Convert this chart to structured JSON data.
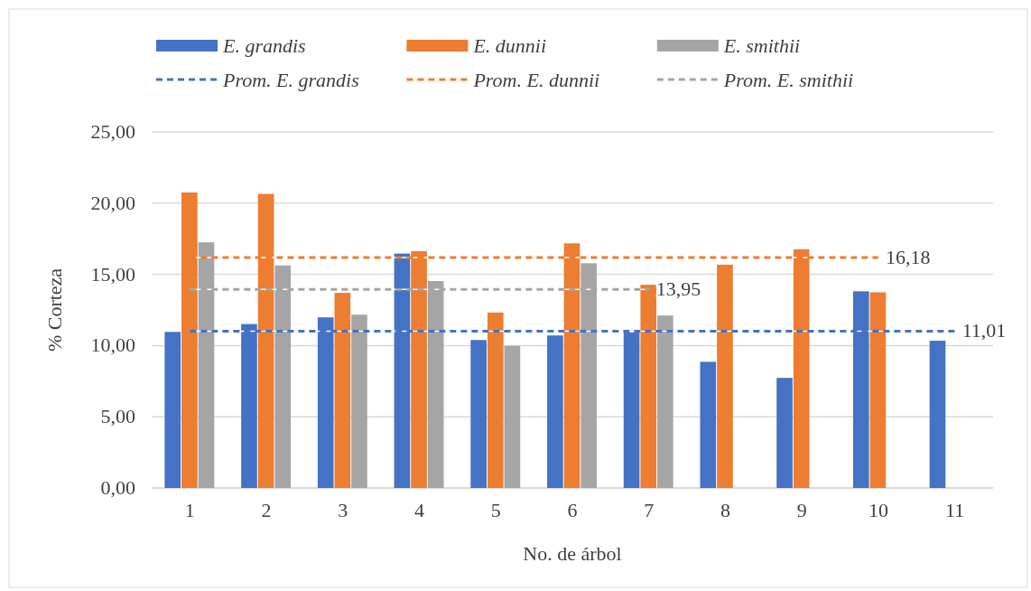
{
  "chart_data": {
    "type": "bar",
    "xlabel": "No. de árbol",
    "ylabel": "% Corteza",
    "categories": [
      "1",
      "2",
      "3",
      "4",
      "5",
      "6",
      "7",
      "8",
      "9",
      "10",
      "11"
    ],
    "series": [
      {
        "name": "E. grandis",
        "color": "#4472c4",
        "values": [
          10.96,
          11.51,
          11.98,
          16.46,
          10.39,
          10.71,
          10.92,
          8.86,
          7.73,
          13.81,
          10.34
        ]
      },
      {
        "name": "E. dunnii",
        "color": "#ed7d31",
        "values": [
          20.75,
          20.65,
          13.7,
          16.63,
          12.32,
          17.18,
          14.27,
          15.68,
          16.76,
          13.74,
          null
        ]
      },
      {
        "name": "E. smithii",
        "color": "#a5a5a5",
        "values": [
          17.25,
          15.63,
          12.17,
          14.53,
          9.98,
          15.78,
          12.11,
          null,
          null,
          null,
          null
        ]
      },
      {
        "name": "Prom. E. grandis",
        "type": "line",
        "line_style": "dashed",
        "marker": "none",
        "color": "#4472c4",
        "values": [
          11.01,
          11.01,
          11.01,
          11.01,
          11.01,
          11.01,
          11.01,
          11.01,
          11.01,
          11.01,
          11.01
        ],
        "value_labels": [
          null,
          null,
          null,
          null,
          null,
          null,
          null,
          null,
          null,
          null,
          "11,01"
        ]
      },
      {
        "name": "Prom. E. dunnii",
        "type": "line",
        "line_style": "dashed",
        "marker": "none",
        "color": "#ed7d31",
        "values": [
          16.18,
          16.18,
          16.18,
          16.18,
          16.18,
          16.18,
          16.18,
          16.18,
          16.18,
          16.18,
          null
        ],
        "value_labels": [
          null,
          null,
          null,
          null,
          null,
          null,
          null,
          null,
          null,
          "16,18",
          null
        ]
      },
      {
        "name": "Prom. E. smithii",
        "type": "line",
        "line_style": "dashed",
        "marker": "none",
        "color": "#a5a5a5",
        "values": [
          13.95,
          13.95,
          13.95,
          13.95,
          13.95,
          13.95,
          13.95,
          null,
          null,
          null,
          null
        ],
        "value_labels": [
          null,
          null,
          null,
          null,
          null,
          null,
          "13,95",
          null,
          null,
          null,
          null
        ]
      }
    ],
    "ylim": [
      0,
      25
    ],
    "yticks": [
      {
        "value": 0,
        "label": "0,00"
      },
      {
        "value": 5,
        "label": "5,00"
      },
      {
        "value": 10,
        "label": "10,00"
      },
      {
        "value": 15,
        "label": "15,00"
      },
      {
        "value": 20,
        "label": "20,00"
      },
      {
        "value": 25,
        "label": "25,00"
      }
    ],
    "grid": "y",
    "legend": "top"
  }
}
